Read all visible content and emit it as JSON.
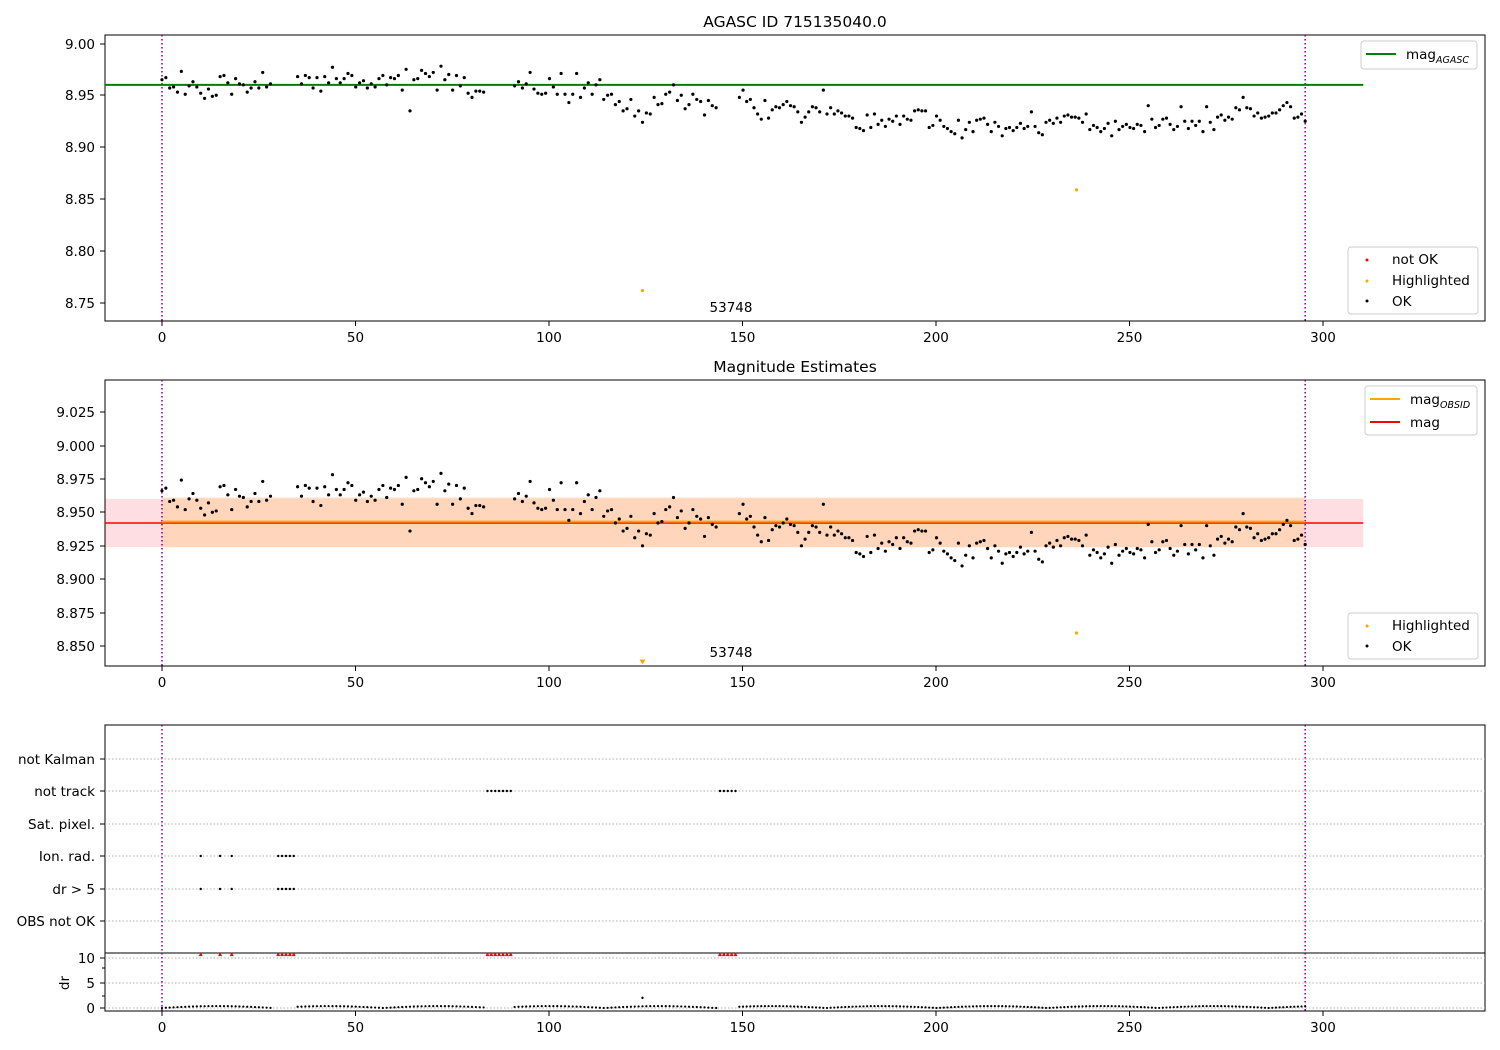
{
  "chart_data": [
    {
      "type": "scatter",
      "title": "AGASC ID 715135040.0",
      "xlabel": "",
      "ylabel": "",
      "xlim": [
        -14.7,
        341.4
      ],
      "ylim": [
        8.7328,
        9.008
      ],
      "xticks": [
        0,
        50,
        100,
        150,
        200,
        250,
        300
      ],
      "xtick_labels": [
        "0",
        "50",
        "100",
        "150",
        "200",
        "250",
        "300"
      ],
      "yticks": [
        8.75,
        8.8,
        8.85,
        8.9,
        8.95,
        9.0
      ],
      "ytick_labels": [
        "8.75",
        "8.80",
        "8.85",
        "8.90",
        "8.95",
        "9.00"
      ],
      "grid": false,
      "vlines": [
        0,
        295
      ],
      "annotation": {
        "text": "53748",
        "x": 147,
        "y": 8.743
      },
      "legend_top": {
        "placement": "top-right",
        "entries": [
          {
            "label": "mag",
            "subscript": "AGASC",
            "color": "#008000"
          }
        ]
      },
      "legend_bottom": {
        "placement": "lower-right",
        "entries": [
          {
            "label": "not OK",
            "color": "#ff0000"
          },
          {
            "label": "Highlighted",
            "color": "#ffa500"
          },
          {
            "label": "OK",
            "color": "#000000"
          }
        ]
      },
      "mag_agasc": {
        "value": 8.96,
        "x": [
          -14.7,
          310
        ]
      },
      "highlighted": [
        {
          "x": 124,
          "y": 8.762
        },
        {
          "x": 236,
          "y": 8.859
        }
      ],
      "ok_segments": [
        {
          "x0": 0,
          "x1": 28,
          "values": [
            8.965,
            8.967,
            8.957,
            8.958,
            8.953,
            8.973,
            8.951,
            8.959,
            8.963,
            8.958,
            8.952,
            8.947,
            8.956,
            8.949,
            8.95,
            8.968,
            8.969,
            8.962,
            8.951,
            8.966,
            8.961,
            8.96,
            8.953,
            8.957,
            8.963,
            8.957,
            8.972,
            8.958,
            8.961
          ]
        },
        {
          "x0": 35,
          "x1": 83,
          "values": [
            8.968,
            8.961,
            8.969,
            8.967,
            8.957,
            8.967,
            8.954,
            8.968,
            8.962,
            8.977,
            8.966,
            8.962,
            8.966,
            8.971,
            8.969,
            8.958,
            8.962,
            8.964,
            8.957,
            8.961,
            8.958,
            8.966,
            8.969,
            8.96,
            8.967,
            8.966,
            8.969,
            8.955,
            8.975,
            8.935,
            8.965,
            8.966,
            8.974,
            8.971,
            8.968,
            8.972,
            8.955,
            8.978,
            8.965,
            8.97,
            8.955,
            8.969,
            8.959,
            8.967,
            8.952,
            8.948,
            8.954,
            8.954,
            8.953
          ]
        },
        {
          "x0": 91,
          "x1": 143,
          "values": [
            8.959,
            8.963,
            8.957,
            8.961,
            8.972,
            8.956,
            8.952,
            8.951,
            8.952,
            8.966,
            8.958,
            8.951,
            8.971,
            8.951,
            8.943,
            8.951,
            8.971,
            8.948,
            8.957,
            8.962,
            8.951,
            8.96,
            8.965,
            8.946,
            8.95,
            8.951,
            8.941,
            8.944,
            8.935,
            8.937,
            8.946,
            8.93,
            8.935,
            8.924,
            8.933,
            8.932,
            8.948,
            8.941,
            8.942,
            8.951,
            8.953,
            8.96,
            8.945,
            8.95,
            8.937,
            8.941,
            8.951,
            8.946,
            8.944,
            8.931,
            8.945,
            8.94,
            8.938
          ]
        },
        {
          "x0": 149,
          "x1": 295,
          "values": [
            8.948,
            8.955,
            8.944,
            8.946,
            8.938,
            8.932,
            8.927,
            8.945,
            8.928,
            8.936,
            8.939,
            8.938,
            8.941,
            8.944,
            8.94,
            8.939,
            8.934,
            8.924,
            8.929,
            8.934,
            8.939,
            8.938,
            8.934,
            8.955,
            8.932,
            8.938,
            8.932,
            8.935,
            8.933,
            8.93,
            8.93,
            8.928,
            8.919,
            8.918,
            8.916,
            8.931,
            8.919,
            8.932,
            8.922,
            8.926,
            8.92,
            8.927,
            8.925,
            8.93,
            8.922,
            8.93,
            8.927,
            8.926,
            8.935,
            8.936,
            8.935,
            8.935,
            8.919,
            8.921,
            8.93,
            8.926,
            8.92,
            8.918,
            8.915,
            8.913,
            8.926,
            8.909,
            8.917,
            8.924,
            8.915,
            8.926,
            8.927,
            8.928,
            8.922,
            8.915,
            8.924,
            8.92,
            8.911,
            8.918,
            8.919,
            8.916,
            8.919,
            8.923,
            8.918,
            8.92,
            8.934,
            8.92,
            8.914,
            8.912,
            8.924,
            8.926,
            8.923,
            8.928,
            8.924,
            8.93,
            8.931,
            8.929,
            8.929,
            8.928,
            8.924,
            8.932,
            8.917,
            8.921,
            8.919,
            8.915,
            8.918,
            8.923,
            8.911,
            8.925,
            8.917,
            8.92,
            8.922,
            8.919,
            8.918,
            8.922,
            8.921,
            8.915,
            8.94,
            8.927,
            8.919,
            8.921,
            8.927,
            8.928,
            8.922,
            8.917,
            8.92,
            8.939,
            8.925,
            8.918,
            8.925,
            8.921,
            8.925,
            8.915,
            8.939,
            8.924,
            8.917,
            8.929,
            8.931,
            8.926,
            8.929,
            8.927,
            8.938,
            8.936,
            8.948,
            8.938,
            8.937,
            8.93,
            8.933,
            8.928,
            8.929,
            8.93,
            8.933,
            8.933,
            8.936,
            8.94,
            8.943,
            8.939,
            8.928,
            8.929,
            8.932,
            8.925
          ]
        }
      ]
    },
    {
      "type": "scatter",
      "title": "Magnitude Estimates",
      "xlabel": "",
      "ylabel": "",
      "xlim": [
        -14.7,
        341.4
      ],
      "ylim": [
        8.8344,
        9.0476
      ],
      "xticks": [
        0,
        50,
        100,
        150,
        200,
        250,
        300
      ],
      "xtick_labels": [
        "0",
        "50",
        "100",
        "150",
        "200",
        "250",
        "300"
      ],
      "yticks": [
        8.85,
        8.875,
        8.9,
        8.925,
        8.95,
        8.975,
        9.0,
        9.025
      ],
      "ytick_labels": [
        "8.850",
        "8.875",
        "8.900",
        "8.925",
        "8.950",
        "8.975",
        "9.000",
        "9.025"
      ],
      "grid": false,
      "vlines": [
        0,
        295
      ],
      "annotation": {
        "text": "53748",
        "x": 147,
        "y": 8.8375
      },
      "legend_top": {
        "placement": "top-right",
        "entries": [
          {
            "label": "mag",
            "subscript": "OBSID",
            "color": "#ffa500"
          },
          {
            "label": "mag",
            "subscript": "",
            "color": "#ff0000"
          }
        ]
      },
      "legend_bottom": {
        "placement": "lower-right",
        "entries": [
          {
            "label": "Highlighted",
            "color": "#ffa500"
          },
          {
            "label": "OK",
            "color": "#000000"
          }
        ]
      },
      "mag": {
        "value": 8.941,
        "band": [
          8.923,
          8.959
        ],
        "x": [
          -14.7,
          310
        ]
      },
      "mag_obsid": {
        "value": 8.942,
        "band": [
          8.923,
          8.96
        ],
        "x": [
          0,
          295
        ]
      },
      "highlighted": [
        {
          "x": 236,
          "y": 8.859
        }
      ],
      "highlighted_offscale": [
        {
          "x": 124,
          "y": 8.837
        }
      ]
    },
    {
      "type": "scatter",
      "title": "",
      "xlabel": "",
      "ylabel": "",
      "xlim": [
        -14.7,
        341.4
      ],
      "xticks": [
        0,
        50,
        100,
        150,
        200,
        250,
        300
      ],
      "xtick_labels": [
        "0",
        "50",
        "100",
        "150",
        "200",
        "250",
        "300"
      ],
      "vlines": [
        0,
        295
      ],
      "flag_rows": [
        "not Kalman",
        "not track",
        "Sat. pixel.",
        "Ion. rad.",
        "dr > 5",
        "OBS not OK"
      ],
      "flags": {
        "not Kalman": [],
        "not track": [
          84,
          85,
          86,
          87,
          88,
          89,
          90,
          144,
          145,
          146,
          147,
          148
        ],
        "Sat. pixel.": [],
        "Ion. rad.": [
          10,
          15,
          18,
          30,
          31,
          32,
          33,
          34
        ],
        "dr > 5": [
          10,
          15,
          18,
          30,
          31,
          32,
          33,
          34
        ],
        "OBS not OK": []
      }
    },
    {
      "type": "scatter",
      "title": "",
      "xlabel": "",
      "ylabel": "dr",
      "xlim": [
        -14.7,
        341.4
      ],
      "ylim": [
        -0.4,
        10.2
      ],
      "yticks": [
        0,
        5,
        10
      ],
      "ytick_labels": [
        "0",
        "5",
        "10"
      ],
      "grid": true,
      "vlines": [
        0,
        295
      ],
      "high_dr_markers": [
        10,
        15,
        18,
        30,
        31,
        32,
        33,
        34,
        84,
        85,
        86,
        87,
        88,
        89,
        90,
        144,
        145,
        146,
        147,
        148
      ],
      "high_dr_color": "#ff0000",
      "spike": {
        "x": 124,
        "y": 2.0
      }
    }
  ]
}
